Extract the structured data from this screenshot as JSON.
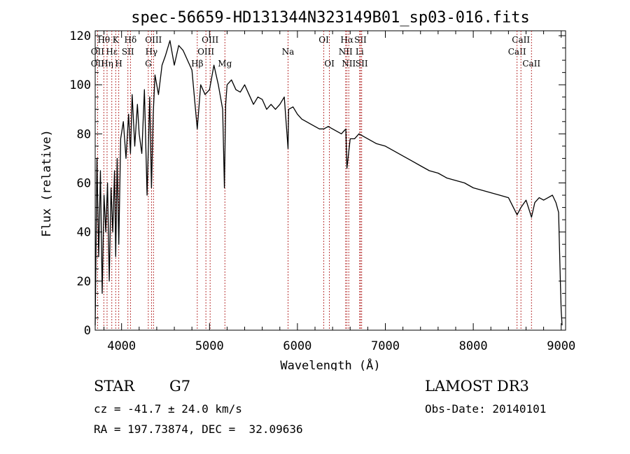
{
  "chart_data": {
    "type": "line",
    "title": "spec-56659-HD131344N323149B01_sp03-016.fits",
    "xlabel": "Wavelength (Å)",
    "ylabel": "Flux (relative)",
    "xlim": [
      3700,
      9050
    ],
    "ylim": [
      0,
      122
    ],
    "xticks": [
      4000,
      5000,
      6000,
      7000,
      8000,
      9000
    ],
    "yticks": [
      0,
      20,
      40,
      60,
      80,
      100,
      120
    ],
    "series": [
      {
        "name": "spectrum",
        "x": [
          3700,
          3720,
          3740,
          3760,
          3780,
          3800,
          3820,
          3840,
          3860,
          3880,
          3900,
          3920,
          3933,
          3950,
          3968,
          3990,
          4020,
          4050,
          4080,
          4101,
          4120,
          4150,
          4180,
          4200,
          4230,
          4260,
          4290,
          4320,
          4340,
          4360,
          4380,
          4420,
          4460,
          4500,
          4550,
          4600,
          4650,
          4700,
          4750,
          4800,
          4861,
          4900,
          4950,
          5000,
          5050,
          5100,
          5150,
          5170,
          5184,
          5200,
          5250,
          5300,
          5350,
          5400,
          5450,
          5500,
          5550,
          5600,
          5650,
          5700,
          5750,
          5800,
          5850,
          5893,
          5900,
          5950,
          6000,
          6050,
          6100,
          6150,
          6200,
          6250,
          6300,
          6350,
          6400,
          6450,
          6500,
          6550,
          6563,
          6600,
          6650,
          6700,
          6750,
          6800,
          6900,
          7000,
          7100,
          7200,
          7300,
          7400,
          7500,
          7600,
          7700,
          7800,
          7900,
          8000,
          8100,
          8200,
          8300,
          8400,
          8498,
          8542,
          8600,
          8662,
          8700,
          8750,
          8800,
          8850,
          8900,
          8940,
          8970,
          8990,
          9000,
          9010
        ],
        "values": [
          2,
          70,
          30,
          65,
          15,
          55,
          40,
          60,
          20,
          58,
          40,
          65,
          30,
          70,
          35,
          78,
          85,
          70,
          88,
          72,
          96,
          75,
          92,
          80,
          72,
          98,
          55,
          95,
          58,
          88,
          104,
          96,
          108,
          112,
          118,
          108,
          116,
          114,
          110,
          106,
          82,
          100,
          96,
          98,
          108,
          100,
          90,
          58,
          92,
          100,
          102,
          98,
          97,
          100,
          96,
          92,
          95,
          94,
          90,
          92,
          90,
          92,
          95,
          74,
          90,
          91,
          88,
          86,
          85,
          84,
          83,
          82,
          82,
          83,
          82,
          81,
          80,
          82,
          66,
          78,
          78,
          80,
          79,
          78,
          76,
          75,
          73,
          71,
          69,
          67,
          65,
          64,
          62,
          61,
          60,
          58,
          57,
          56,
          55,
          54,
          47,
          50,
          53,
          46,
          52,
          54,
          53,
          54,
          55,
          52,
          48,
          20,
          8,
          2
        ]
      }
    ],
    "lines": [
      {
        "label": "Hθ",
        "x": 3798,
        "row": 1
      },
      {
        "label": "OII",
        "x": 3727,
        "row": 2
      },
      {
        "label": "OII",
        "x": 3727,
        "row": 3
      },
      {
        "label": "Hε",
        "x": 3889,
        "row": 2
      },
      {
        "label": "Hη",
        "x": 3835,
        "row": 3
      },
      {
        "label": "K",
        "x": 3933,
        "row": 1
      },
      {
        "label": "H",
        "x": 3968,
        "row": 3
      },
      {
        "label": "Hδ",
        "x": 4101,
        "row": 1
      },
      {
        "label": "SII",
        "x": 4072,
        "row": 2
      },
      {
        "label": "OIII",
        "x": 4363,
        "row": 1
      },
      {
        "label": "Hγ",
        "x": 4340,
        "row": 2
      },
      {
        "label": "G",
        "x": 4304,
        "row": 3
      },
      {
        "label": "OIII",
        "x": 5007,
        "row": 1
      },
      {
        "label": "OIII",
        "x": 4959,
        "row": 2
      },
      {
        "label": "Hβ",
        "x": 4861,
        "row": 3
      },
      {
        "label": "Mg",
        "x": 5175,
        "row": 3
      },
      {
        "label": "Na",
        "x": 5893,
        "row": 2
      },
      {
        "label": "OI",
        "x": 6300,
        "row": 1
      },
      {
        "label": "OI",
        "x": 6364,
        "row": 3
      },
      {
        "label": "Hα",
        "x": 6563,
        "row": 1
      },
      {
        "label": "NII",
        "x": 6548,
        "row": 2
      },
      {
        "label": "NII",
        "x": 6584,
        "row": 3
      },
      {
        "label": "SII",
        "x": 6717,
        "row": 1
      },
      {
        "label": "Li",
        "x": 6708,
        "row": 2
      },
      {
        "label": "SII",
        "x": 6731,
        "row": 3
      },
      {
        "label": "CaII",
        "x": 8498,
        "row": 2
      },
      {
        "label": "CaII",
        "x": 8542,
        "row": 1
      },
      {
        "label": "CaII",
        "x": 8662,
        "row": 3
      }
    ]
  },
  "info": {
    "object_class": "STAR",
    "subclass": "G7",
    "survey": "LAMOST DR3",
    "redshift": "cz = -41.7 ± 24.0 km/s",
    "obs_date": "Obs-Date: 20140101",
    "coords": "RA = 197.73874, DEC =  32.09636"
  }
}
